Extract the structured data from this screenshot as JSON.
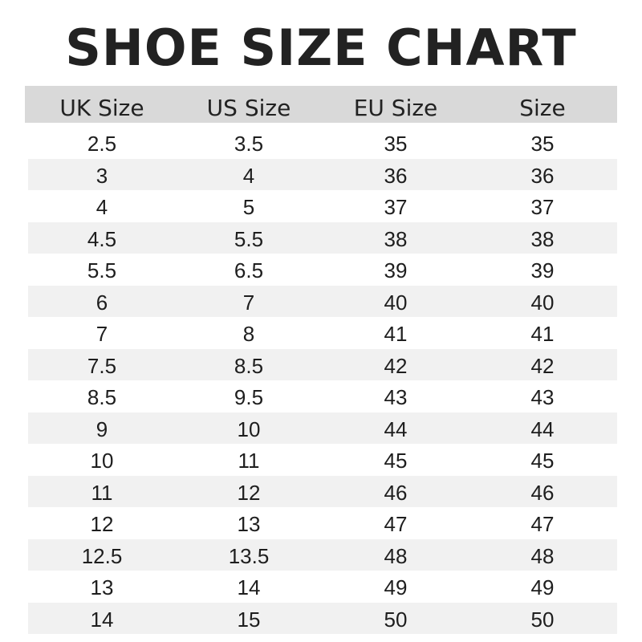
{
  "title": "SHOE SIZE CHART",
  "columns": [
    "UK Size",
    "US Size",
    "EU Size",
    "Size"
  ],
  "rows": [
    [
      "2.5",
      "3.5",
      "35",
      "35"
    ],
    [
      "3",
      "4",
      "36",
      "36"
    ],
    [
      "4",
      "5",
      "37",
      "37"
    ],
    [
      "4.5",
      "5.5",
      "38",
      "38"
    ],
    [
      "5.5",
      "6.5",
      "39",
      "39"
    ],
    [
      "6",
      "7",
      "40",
      "40"
    ],
    [
      "7",
      "8",
      "41",
      "41"
    ],
    [
      "7.5",
      "8.5",
      "42",
      "42"
    ],
    [
      "8.5",
      "9.5",
      "43",
      "43"
    ],
    [
      "9",
      "10",
      "44",
      "44"
    ],
    [
      "10",
      "11",
      "45",
      "45"
    ],
    [
      "11",
      "12",
      "46",
      "46"
    ],
    [
      "12",
      "13",
      "47",
      "47"
    ],
    [
      "12.5",
      "13.5",
      "48",
      "48"
    ],
    [
      "13",
      "14",
      "49",
      "49"
    ],
    [
      "14",
      "15",
      "50",
      "50"
    ]
  ],
  "colors": {
    "header_bg": "#d9d9d9",
    "alt_row_bg": "#f1f1f1",
    "text": "#1e1e1e"
  }
}
